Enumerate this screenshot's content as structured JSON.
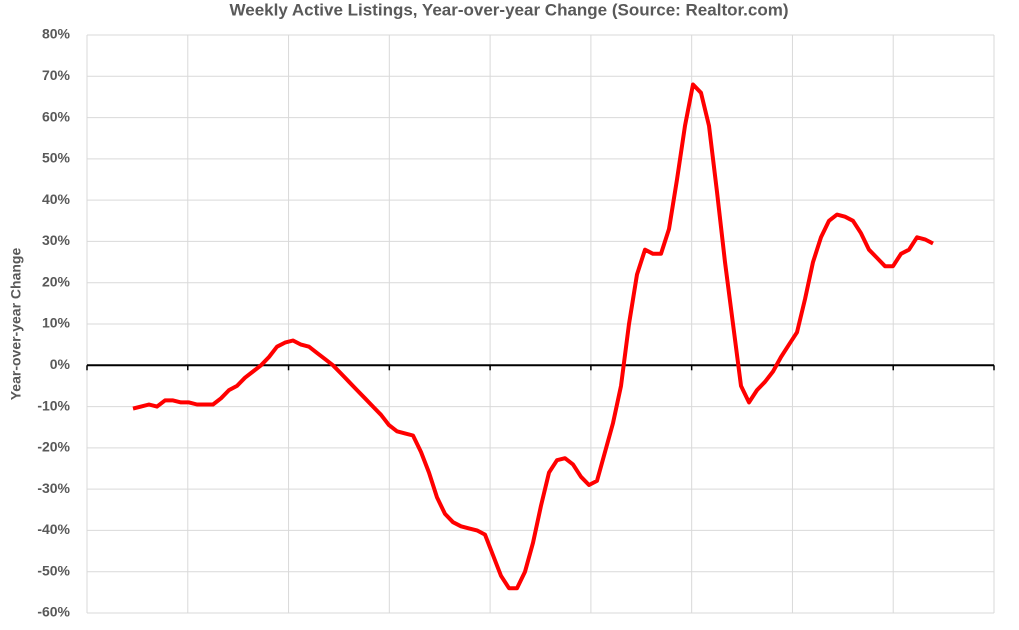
{
  "chart_data": {
    "type": "line",
    "title": "Weekly Active Listings, Year-over-year Change (Source: Realtor.com)",
    "y_label": "Year-over-year Change",
    "categories": [
      null,
      null,
      null,
      null,
      null,
      null,
      null,
      null,
      null,
      null,
      null,
      null,
      null,
      null,
      null,
      null,
      null,
      null,
      null,
      null,
      null,
      null,
      null,
      null,
      null,
      null,
      null,
      null,
      null,
      null,
      null,
      null,
      null,
      null,
      null,
      null,
      null,
      null,
      null,
      null,
      null,
      null,
      null,
      null,
      null,
      null,
      null,
      null,
      null,
      null,
      null,
      null,
      null,
      null,
      null,
      null,
      null,
      null,
      null,
      null,
      null,
      null,
      null,
      null,
      null,
      null,
      null,
      null,
      null,
      null,
      null,
      null,
      null,
      null,
      null,
      null,
      null,
      null,
      null,
      null,
      null,
      null,
      null,
      null,
      null,
      null,
      null,
      null,
      null,
      null,
      null,
      null,
      null,
      null,
      null,
      null,
      null,
      null,
      null,
      null,
      null
    ],
    "series": [
      {
        "name": null,
        "color": "#ff0000",
        "values": [
          -10.5,
          -10,
          -9.5,
          -10,
          -8.5,
          -8.5,
          -9,
          -9,
          -9.5,
          -9.5,
          -9.5,
          -8,
          -6,
          -5,
          -3,
          -1.5,
          0,
          2,
          4.5,
          5.5,
          6,
          5,
          4.5,
          3,
          1.5,
          0,
          -2,
          -4,
          -6,
          -8,
          -10,
          -12,
          -14.5,
          -16,
          -16.5,
          -17,
          -21,
          -26,
          -32,
          -36,
          -38,
          -39,
          -39.5,
          -40,
          -41,
          -46,
          -51,
          -54,
          -54,
          -50,
          -43,
          -34,
          -26,
          -23,
          -22.5,
          -24,
          -27,
          -29,
          -28,
          -21,
          -14,
          -5,
          10,
          22,
          28,
          27,
          27,
          33,
          45,
          58,
          68,
          66,
          58,
          42,
          25,
          10,
          -5,
          -9,
          -6,
          -4,
          -1.5,
          2,
          5,
          8,
          16,
          25,
          31,
          35,
          36.5,
          36,
          35,
          32,
          28,
          26,
          24,
          24,
          27,
          28,
          31,
          30.5,
          29.5
        ]
      }
    ],
    "ylim": [
      -60,
      80
    ],
    "yticks": [
      {
        "value": 80,
        "label": "80%"
      },
      {
        "value": 70,
        "label": "70%"
      },
      {
        "value": 60,
        "label": "60%"
      },
      {
        "value": 50,
        "label": "50%"
      },
      {
        "value": 40,
        "label": "40%"
      },
      {
        "value": 30,
        "label": "30%"
      },
      {
        "value": 20,
        "label": "20%"
      },
      {
        "value": 10,
        "label": "10%"
      },
      {
        "value": 0,
        "label": "0%"
      },
      {
        "value": -10,
        "label": "-10%"
      },
      {
        "value": -20,
        "label": "-20%"
      },
      {
        "value": -30,
        "label": "-30%"
      },
      {
        "value": -40,
        "label": "-40%"
      },
      {
        "value": -50,
        "label": "-50%"
      },
      {
        "value": -60,
        "label": "-60%"
      }
    ],
    "grid": true
  }
}
